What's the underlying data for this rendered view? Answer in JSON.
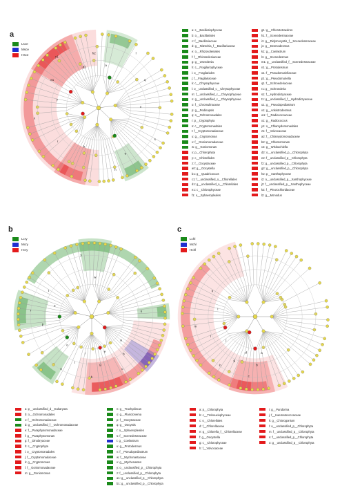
{
  "colors": {
    "green": "#1a8a1a",
    "blue": "#1f2fd0",
    "red": "#e31a1c",
    "node": "#e6d84a"
  },
  "panels": [
    {
      "letter": "a",
      "legend": [
        {
          "label": "Lsce",
          "color": "#1a8a1a"
        },
        {
          "label": "Msce",
          "color": "#1f2fd0"
        },
        {
          "label": "Hsce",
          "color": "#e31a1c"
        }
      ]
    },
    {
      "letter": "b",
      "legend": [
        {
          "label": "Lcry",
          "color": "#1a8a1a"
        },
        {
          "label": "Mcry",
          "color": "#1f2fd0"
        },
        {
          "label": "Hcry",
          "color": "#e31a1c"
        }
      ]
    },
    {
      "letter": "c",
      "legend": [
        {
          "label": "Lchl",
          "color": "#1a8a1a"
        },
        {
          "label": "Mchl",
          "color": "#1f2fd0"
        },
        {
          "label": "Hchl",
          "color": "#e31a1c"
        }
      ]
    }
  ],
  "lists": {
    "a_col1": [
      {
        "t": "a: c__Bacillariophyceae",
        "c": "g"
      },
      {
        "t": "b: o__Bacillariales",
        "c": "g"
      },
      {
        "t": "c: f__Bacillariaceae",
        "c": "g"
      },
      {
        "t": "d: g__Nitzschia_f__Bacillariaceae",
        "c": "g"
      },
      {
        "t": "e: o__Rhizosoleniales",
        "c": "g"
      },
      {
        "t": "f: f__Rhizosoleniaceae",
        "c": "g"
      },
      {
        "t": "g: g__Urosolenia",
        "c": "g"
      },
      {
        "t": "h: c__Fragilariophyceae",
        "c": "g"
      },
      {
        "t": "i: o__Fragilariales",
        "c": "g"
      },
      {
        "t": "j: f__Fragilariaceae",
        "c": "g"
      },
      {
        "t": "k: c__Chrysophyceae",
        "c": "g"
      },
      {
        "t": "l: o__unclassified_c__Chrysophyceae",
        "c": "g"
      },
      {
        "t": "m: f__unclassified_c__Chrysophyceae",
        "c": "g"
      },
      {
        "t": "n: g__unclassified_c__Chrysophyceae",
        "c": "g"
      },
      {
        "t": "o: f__Chromulinaceae",
        "c": "g"
      },
      {
        "t": "p: g__Pedinopsis",
        "c": "g"
      },
      {
        "t": "q: o__Ochromonadales",
        "c": "g"
      },
      {
        "t": "r: p__Cryptophyta",
        "c": "g"
      },
      {
        "t": "s: c__Cryptomonadales",
        "c": "g"
      },
      {
        "t": "t: f__Cryptomonadaceae",
        "c": "g"
      },
      {
        "t": "u: g__Cryptomonas",
        "c": "g"
      },
      {
        "t": "v: f__Goniomonadaceae",
        "c": "g"
      },
      {
        "t": "w: g__Goniomonas",
        "c": "g"
      },
      {
        "t": "x: p__Chlorophyta",
        "c": "r"
      },
      {
        "t": "y: c__Chlorellales",
        "c": "r"
      },
      {
        "t": "z: f__Oocystaceae",
        "c": "r"
      },
      {
        "t": "a0: g__Oocystella",
        "c": "r"
      },
      {
        "t": "b1: g__Quadricoccus",
        "c": "r"
      },
      {
        "t": "c1: f__unclassified_o__Chlorellales",
        "c": "r"
      },
      {
        "t": "d1: g__unclassified_o__Chlorellales",
        "c": "r"
      },
      {
        "t": "e1: c__Chlorophyceae",
        "c": "r"
      },
      {
        "t": "f1: o__Sphaeropleales",
        "c": "r"
      }
    ],
    "a_col2": [
      {
        "t": "g1: g__Chlorotetraedron",
        "c": "r"
      },
      {
        "t": "h1: f__Scenedesmaceae",
        "c": "r"
      },
      {
        "t": "i1: g__Didymocystis_f__Scenedesmaceae",
        "c": "r"
      },
      {
        "t": "j1: g__Desmodesmus",
        "c": "r"
      },
      {
        "t": "k1: g__Coelastrum",
        "c": "r"
      },
      {
        "t": "l1: g__Scenedesmus",
        "c": "r"
      },
      {
        "t": "m1: g__unclassified_f__Scenedesmaceae",
        "c": "r"
      },
      {
        "t": "n1: g__Protodesmus",
        "c": "r"
      },
      {
        "t": "o1: f__Pseudomuriellaceae",
        "c": "r"
      },
      {
        "t": "p1: g__Pseudomuriella",
        "c": "r"
      },
      {
        "t": "q1: f__Schroederiaceae",
        "c": "r"
      },
      {
        "t": "r1: g__Schroederia",
        "c": "r"
      },
      {
        "t": "s1: f__Hydrodictyaceae",
        "c": "r"
      },
      {
        "t": "t1: g__unclassified_f__Hydrodictyaceae",
        "c": "r"
      },
      {
        "t": "u1: g__Pseudopediastrum",
        "c": "r"
      },
      {
        "t": "v1: g__Ankistrodesmus",
        "c": "r"
      },
      {
        "t": "w1: f__Radiococcaceae",
        "c": "r"
      },
      {
        "t": "x1: g__Radiococcus",
        "c": "r"
      },
      {
        "t": "y1: o__Chlamydomonadales",
        "c": "r"
      },
      {
        "t": "z1: f__Volvocaceae",
        "c": "r"
      },
      {
        "t": "a2: f__Chlamydomonadaceae",
        "c": "r"
      },
      {
        "t": "b2: g__Chlamomonas",
        "c": "r"
      },
      {
        "t": "c2: g__Wislouchiella",
        "c": "r"
      },
      {
        "t": "d2: o__unclassified_p__Chlorophyta",
        "c": "r"
      },
      {
        "t": "e2: f__unclassified_p__Chlorophyta",
        "c": "r"
      },
      {
        "t": "f2: g__unclassified_p__Chlorophyta",
        "c": "r"
      },
      {
        "t": "g2: g__unclassified_p__Chlorophyta",
        "c": "r"
      },
      {
        "t": "h2: p__Xanthophyceae",
        "c": "r"
      },
      {
        "t": "i2: o__unclassified_p__Xanthophyceae",
        "c": "r"
      },
      {
        "t": "j2: f__unclassified_p__Xanthophyceae",
        "c": "r"
      },
      {
        "t": "k2: f__Pleurochloridaceae",
        "c": "r"
      },
      {
        "t": "l2: g__Monodus",
        "c": "r"
      }
    ],
    "b_col1": [
      {
        "t": "a: p__unclassified_d__Eukaryota",
        "c": "r"
      },
      {
        "t": "b: o__Ochromonadales",
        "c": "r"
      },
      {
        "t": "c: f__Ochromonadaceae",
        "c": "g"
      },
      {
        "t": "d: g__unclassified_f__Ochromonadaceae",
        "c": "g"
      },
      {
        "t": "e: f__Paraphysomonadaceae",
        "c": "r"
      },
      {
        "t": "f: g__Paraphysomonas",
        "c": "r"
      },
      {
        "t": "g: f__Dinobryaceae",
        "c": "r"
      },
      {
        "t": "h: c__Cryptophyta",
        "c": "r"
      },
      {
        "t": "i: o__Cryptomonadales",
        "c": "r"
      },
      {
        "t": "j: f__Cryptomonadaceae",
        "c": "r"
      },
      {
        "t": "k: g__Cryptomonas",
        "c": "r"
      },
      {
        "t": "l: f__Goniomonadaceae",
        "c": "r"
      },
      {
        "t": "m: g__Goniomonas",
        "c": "r"
      }
    ],
    "b_col2": [
      {
        "t": "n: g__Trachydiscus",
        "c": "g"
      },
      {
        "t": "o: g__Planctonema",
        "c": "g"
      },
      {
        "t": "p: f__Oocystaceae",
        "c": "g"
      },
      {
        "t": "q: g__Oocystis",
        "c": "g"
      },
      {
        "t": "r: o__Sphaeropleales",
        "c": "g"
      },
      {
        "t": "s: f__Scenedesmaceae",
        "c": "g"
      },
      {
        "t": "t: g__Coelastrum",
        "c": "b"
      },
      {
        "t": "u: g__Protodesmus",
        "c": "g"
      },
      {
        "t": "v: f__Pseudopediastrum",
        "c": "g"
      },
      {
        "t": "w: f__Mychonastaceae",
        "c": "g"
      },
      {
        "t": "x: g__Mychonastes",
        "c": "g"
      },
      {
        "t": "y: o__unclassified_p__Chlorophyta",
        "c": "g"
      },
      {
        "t": "z: f__unclassified_p__Chlorophyta",
        "c": "g"
      },
      {
        "t": "a1: g__unclassified_p__Chlorophyta",
        "c": "g"
      },
      {
        "t": "b1: g__unclassified_p__Chlorophyta",
        "c": "g"
      }
    ],
    "c_col1": [
      {
        "t": "a: p__Chlorophyta",
        "c": "r"
      },
      {
        "t": "b: c__Trebouxiophyceae",
        "c": "r"
      },
      {
        "t": "c: o__Chlorellales",
        "c": "r"
      },
      {
        "t": "d: f__Chlorellaceae",
        "c": "r"
      },
      {
        "t": "e: g__Chlorella_f__Chlorellaceae",
        "c": "r"
      },
      {
        "t": "f: g__Oocystella",
        "c": "r"
      },
      {
        "t": "g: c__Chlorophyceae",
        "c": "r"
      },
      {
        "t": "h: f__Volvocaceae",
        "c": "r"
      }
    ],
    "c_col2": [
      {
        "t": "i: g__Pandorina",
        "c": "r"
      },
      {
        "t": "j: f__Haematococcaceae",
        "c": "r"
      },
      {
        "t": "k: g__Chlorogonium",
        "c": "r"
      },
      {
        "t": "l: o__unclassified_p__Chlorophyta",
        "c": "r"
      },
      {
        "t": "m: f__unclassified_p__Chlorophyta",
        "c": "r"
      },
      {
        "t": "n: f__unclassified_p__Chlorophyta",
        "c": "r"
      },
      {
        "t": "o: g__unclassified_p__Chlorophyta",
        "c": "r"
      }
    ]
  },
  "clado_labels": {
    "a": [
      "a",
      "e",
      "h",
      "k",
      "r",
      "x",
      "y",
      "e1",
      "y1",
      "d2",
      "h2",
      "s",
      "v",
      "q",
      "l"
    ],
    "b": [
      "a",
      "b",
      "c",
      "e",
      "g",
      "h",
      "i",
      "l",
      "n",
      "o",
      "p",
      "r",
      "s",
      "t",
      "y",
      "w",
      "u"
    ],
    "c": [
      "a",
      "b",
      "c",
      "d",
      "g",
      "h",
      "j",
      "l",
      "m",
      "i",
      "k"
    ]
  }
}
